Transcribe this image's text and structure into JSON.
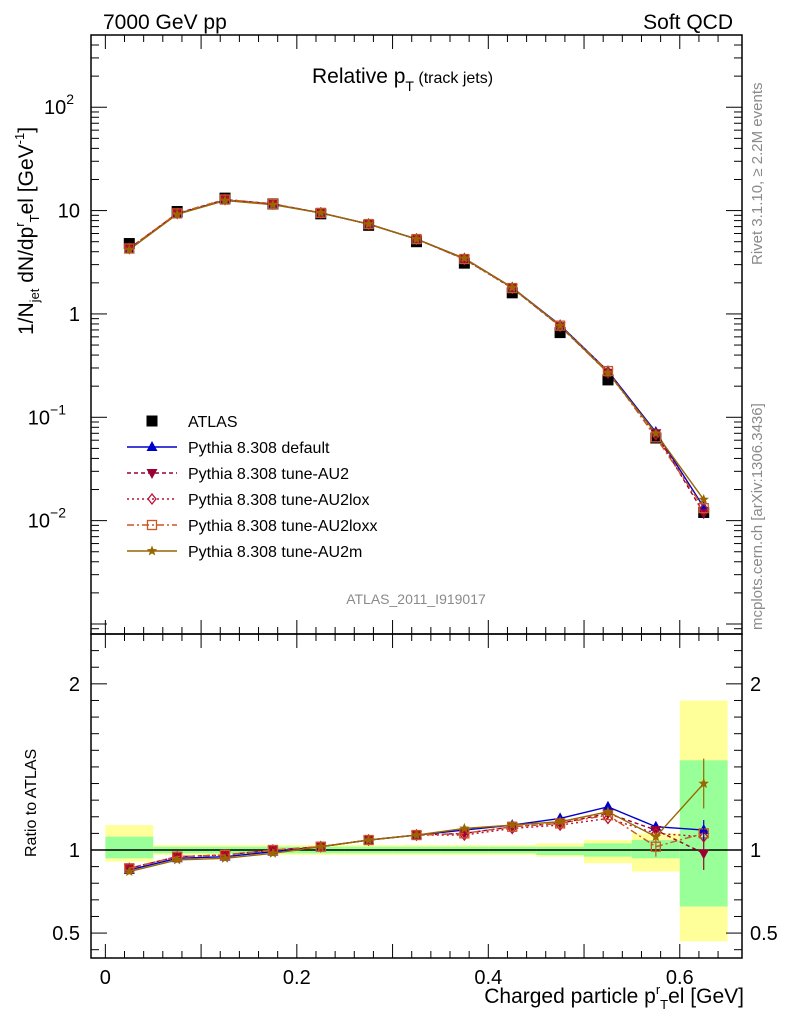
{
  "header": {
    "left": "7000 GeV pp",
    "right": "Soft QCD"
  },
  "title": {
    "main": "Relative p",
    "sub": "T",
    "suffix": " (track jets)"
  },
  "side_labels": {
    "rivet": "Rivet 3.1.10, ≥ 2.2M events",
    "mcplots": "mcplots.cern.ch [arXiv:1306.3436]"
  },
  "watermark": "ATLAS_2011_I919017",
  "ylabel_main": {
    "a": "1/N",
    "a_sub": "jet",
    "b": " dN/dp",
    "b_sup": "r",
    "b_sub": "T",
    "c": "el [GeV",
    "c_sup": "-1",
    "d": "]"
  },
  "ylabel_ratio": "Ratio to ATLAS",
  "xlabel": {
    "a": "Charged particle p",
    "sup": "r",
    "sub": "T",
    "b": "el [GeV]"
  },
  "colors": {
    "atlas": "#000000",
    "default": "#0000cc",
    "au2": "#990033",
    "au2lox": "#bb1133",
    "au2loxx": "#cc5522",
    "au2m": "#996600",
    "band_stat": "#99ff99",
    "band_total": "#ffff99"
  },
  "chart_data": [
    {
      "type": "scatter",
      "panel": "main",
      "log_y": true,
      "xlim": [
        -0.015,
        0.665
      ],
      "ylim": [
        0.0008,
        500
      ],
      "x_ticks": [
        0,
        0.2,
        0.4,
        0.6
      ],
      "y_tick_labels": [
        {
          "v": 0.01,
          "base": "10",
          "exp": "−2"
        },
        {
          "v": 0.1,
          "base": "10",
          "exp": "−1"
        },
        {
          "v": 1,
          "base": "1",
          "exp": ""
        },
        {
          "v": 10,
          "base": "10",
          "exp": ""
        },
        {
          "v": 100,
          "base": "10",
          "exp": "2"
        }
      ],
      "x": [
        0.025,
        0.075,
        0.125,
        0.175,
        0.225,
        0.275,
        0.325,
        0.375,
        0.425,
        0.475,
        0.525,
        0.575,
        0.625
      ],
      "legend_position": "lower-left",
      "series": [
        {
          "name": "ATLAS",
          "key": "atlas",
          "marker": "square",
          "values": [
            4.8,
            9.8,
            13.2,
            11.6,
            9.3,
            7.2,
            5.0,
            3.1,
            1.6,
            0.66,
            0.23,
            0.063,
            0.012
          ]
        },
        {
          "name": "Pythia 8.308 default",
          "key": "default",
          "marker": "triangle-up",
          "dash": "",
          "values": [
            4.2,
            9.3,
            12.6,
            11.5,
            9.5,
            7.4,
            5.3,
            3.45,
            1.8,
            0.78,
            0.28,
            0.072,
            0.0135
          ]
        },
        {
          "name": "Pythia 8.308 tune-AU2",
          "key": "au2",
          "marker": "triangle-down",
          "dash": "4,3",
          "values": [
            4.3,
            9.4,
            12.8,
            11.6,
            9.5,
            7.4,
            5.3,
            3.4,
            1.78,
            0.76,
            0.27,
            0.07,
            0.0118
          ]
        },
        {
          "name": "Pythia 8.308 tune-AU2lox",
          "key": "au2lox",
          "marker": "diamond-open",
          "dash": "2,3",
          "values": [
            4.3,
            9.4,
            12.8,
            11.6,
            9.5,
            7.4,
            5.3,
            3.38,
            1.77,
            0.76,
            0.27,
            0.068,
            0.013
          ]
        },
        {
          "name": "Pythia 8.308 tune-AU2loxx",
          "key": "au2loxx",
          "marker": "square-open",
          "dash": "7,3,2,3",
          "values": [
            4.3,
            9.4,
            12.8,
            11.6,
            9.5,
            7.4,
            5.3,
            3.4,
            1.78,
            0.77,
            0.28,
            0.064,
            0.0132
          ]
        },
        {
          "name": "Pythia 8.308 tune-AU2m",
          "key": "au2m",
          "marker": "star",
          "dash": "",
          "values": [
            4.2,
            9.2,
            12.5,
            11.4,
            9.5,
            7.4,
            5.3,
            3.45,
            1.8,
            0.77,
            0.27,
            0.07,
            0.016
          ]
        }
      ]
    },
    {
      "type": "line",
      "panel": "ratio",
      "xlim": [
        -0.015,
        0.665
      ],
      "ylim": [
        0.35,
        2.3
      ],
      "x_ticks": [
        0,
        0.2,
        0.4,
        0.6
      ],
      "y_ticks": [
        0.5,
        1,
        2
      ],
      "x": [
        0.025,
        0.075,
        0.125,
        0.175,
        0.225,
        0.275,
        0.325,
        0.375,
        0.425,
        0.475,
        0.525,
        0.575,
        0.625
      ],
      "bands": [
        {
          "x0": 0.0,
          "x1": 0.05,
          "stat": [
            0.95,
            1.08
          ],
          "total": [
            0.93,
            1.15
          ]
        },
        {
          "x0": 0.05,
          "x1": 0.1,
          "stat": [
            0.98,
            1.02
          ],
          "total": [
            0.97,
            1.03
          ]
        },
        {
          "x0": 0.1,
          "x1": 0.15,
          "stat": [
            0.98,
            1.02
          ],
          "total": [
            0.97,
            1.03
          ]
        },
        {
          "x0": 0.15,
          "x1": 0.2,
          "stat": [
            0.98,
            1.02
          ],
          "total": [
            0.97,
            1.03
          ]
        },
        {
          "x0": 0.2,
          "x1": 0.25,
          "stat": [
            0.98,
            1.02
          ],
          "total": [
            0.97,
            1.03
          ]
        },
        {
          "x0": 0.25,
          "x1": 0.3,
          "stat": [
            0.98,
            1.02
          ],
          "total": [
            0.97,
            1.03
          ]
        },
        {
          "x0": 0.3,
          "x1": 0.35,
          "stat": [
            0.98,
            1.02
          ],
          "total": [
            0.97,
            1.03
          ]
        },
        {
          "x0": 0.35,
          "x1": 0.4,
          "stat": [
            0.98,
            1.02
          ],
          "total": [
            0.97,
            1.03
          ]
        },
        {
          "x0": 0.4,
          "x1": 0.45,
          "stat": [
            0.98,
            1.02
          ],
          "total": [
            0.97,
            1.03
          ]
        },
        {
          "x0": 0.45,
          "x1": 0.5,
          "stat": [
            0.97,
            1.02
          ],
          "total": [
            0.96,
            1.04
          ]
        },
        {
          "x0": 0.5,
          "x1": 0.55,
          "stat": [
            0.96,
            1.04
          ],
          "total": [
            0.92,
            1.06
          ]
        },
        {
          "x0": 0.55,
          "x1": 0.6,
          "stat": [
            0.95,
            1.06
          ],
          "total": [
            0.87,
            1.1
          ]
        },
        {
          "x0": 0.6,
          "x1": 0.65,
          "stat": [
            0.66,
            1.54
          ],
          "total": [
            0.45,
            1.9
          ]
        }
      ],
      "series": [
        {
          "key": "default",
          "values": [
            0.88,
            0.95,
            0.96,
            0.99,
            1.02,
            1.06,
            1.09,
            1.12,
            1.15,
            1.19,
            1.26,
            1.14,
            1.12
          ]
        },
        {
          "key": "au2",
          "values": [
            0.89,
            0.96,
            0.97,
            1.0,
            1.02,
            1.06,
            1.09,
            1.1,
            1.14,
            1.16,
            1.22,
            1.12,
            0.98
          ]
        },
        {
          "key": "au2lox",
          "values": [
            0.89,
            0.96,
            0.97,
            1.0,
            1.02,
            1.06,
            1.09,
            1.09,
            1.13,
            1.15,
            1.19,
            1.1,
            1.08
          ]
        },
        {
          "key": "au2loxx",
          "values": [
            0.89,
            0.96,
            0.97,
            1.0,
            1.02,
            1.06,
            1.09,
            1.1,
            1.14,
            1.16,
            1.21,
            1.02,
            1.1
          ]
        },
        {
          "key": "au2m",
          "values": [
            0.87,
            0.94,
            0.95,
            0.98,
            1.02,
            1.06,
            1.09,
            1.13,
            1.15,
            1.17,
            1.23,
            1.08,
            1.4
          ]
        }
      ]
    }
  ]
}
